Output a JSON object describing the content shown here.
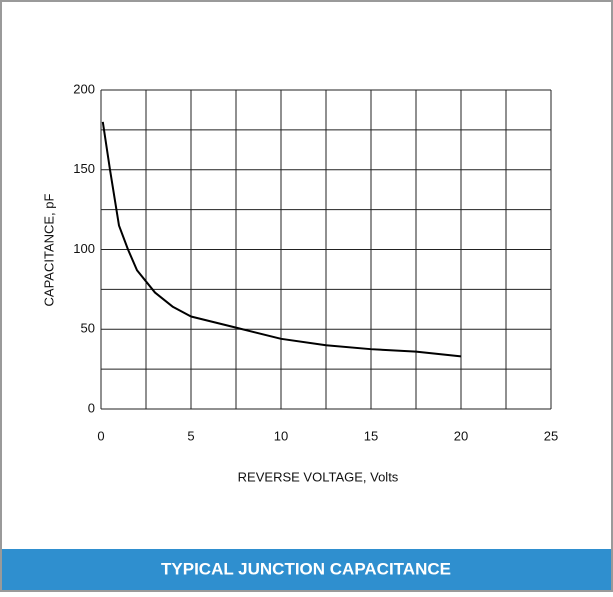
{
  "chart_data": {
    "type": "line",
    "caption": "TYPICAL JUNCTION CAPACITANCE",
    "x_label": "REVERSE VOLTAGE, Volts",
    "y_label": "CAPACITANCE, pF",
    "x": [
      0.1,
      0.5,
      1,
      1.5,
      2,
      3,
      4,
      5,
      7.5,
      10,
      12.5,
      15,
      17.5,
      20
    ],
    "series": [
      {
        "name": "Capacitance",
        "color": "#000000",
        "values": [
          180,
          150,
          115,
          100,
          87,
          73,
          64,
          58,
          51,
          44,
          40,
          37.5,
          36,
          33
        ]
      }
    ],
    "xlim": [
      0,
      25
    ],
    "ylim": [
      0,
      200
    ],
    "xticks": [
      0,
      5,
      10,
      15,
      20,
      25
    ],
    "yticks": [
      0,
      50,
      100,
      150,
      200
    ],
    "minor_xticks": [
      2.5,
      7.5,
      12.5,
      17.5,
      22.5
    ],
    "minor_yticks": [
      25,
      75,
      125,
      175
    ],
    "grid": true
  }
}
